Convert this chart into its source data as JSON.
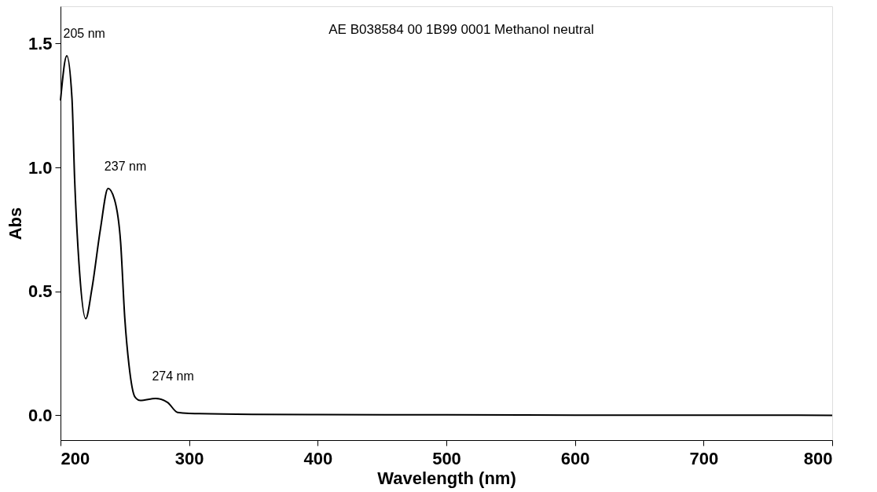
{
  "chart_data": {
    "type": "line",
    "xlabel": "Wavelength (nm)",
    "ylabel": "Abs",
    "x": [
      200,
      204.9,
      208.9,
      211,
      214.4,
      219.6,
      224.4,
      231,
      237,
      242,
      246.7,
      250,
      253.3,
      257.8,
      262,
      274,
      283.3,
      291,
      300,
      349,
      400,
      500,
      600,
      700,
      800
    ],
    "series": [
      {
        "color": "#000000",
        "values": [
          1.27,
          1.45,
          1.28,
          0.95,
          0.61,
          0.39,
          0.51,
          0.75,
          0.915,
          0.87,
          0.7,
          0.39,
          0.2,
          0.075,
          0.06,
          0.068,
          0.052,
          0.012,
          0.008,
          0.004,
          0.003,
          0.002,
          0.001,
          0.001,
          0.0
        ]
      }
    ],
    "xlim": [
      200,
      800
    ],
    "xticks": [
      200,
      300,
      400,
      500,
      600,
      700,
      800
    ],
    "ylim": [
      -0.1,
      1.65
    ],
    "yticks": [
      {
        "value": 0,
        "label": "0.0"
      },
      {
        "value": 0.5,
        "label": "0.5"
      },
      {
        "value": 1,
        "label": "1.0"
      },
      {
        "value": 1.5,
        "label": "1.5"
      }
    ],
    "grid": false,
    "marker": "none",
    "line_style": "solid",
    "annotations": [
      {
        "text": "205 nm",
        "x": 205,
        "y": 1.45
      },
      {
        "text": "237 nm",
        "x": 237,
        "y": 0.915
      },
      {
        "text": "274 nm",
        "x": 274,
        "y": 0.068
      },
      "AE B038584 00 1B99 0001   Methanol  neutral"
    ]
  }
}
